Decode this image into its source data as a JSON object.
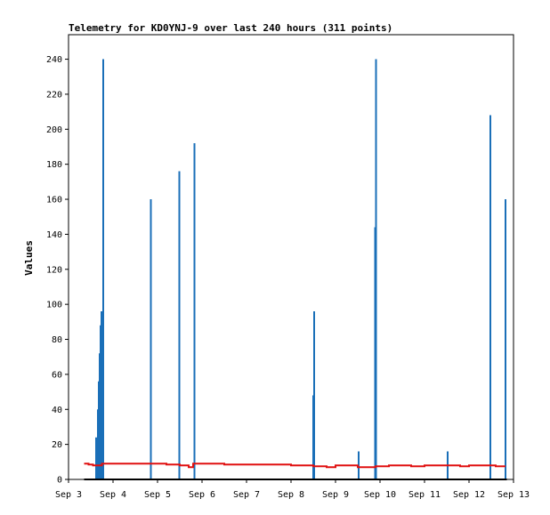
{
  "chart_data": {
    "type": "line",
    "title": "Telemetry for KD0YNJ-9 over last 240 hours (311 points)",
    "ylabel": "Values",
    "xlabel": "",
    "ylim": [
      0,
      254
    ],
    "y_ticks": [
      0,
      20,
      40,
      60,
      80,
      100,
      120,
      140,
      160,
      180,
      200,
      220,
      240
    ],
    "x_ticks": [
      "Sep 3",
      "Sep 4",
      "Sep 5",
      "Sep 6",
      "Sep 7",
      "Sep 8",
      "Sep 9",
      "Sep 10",
      "Sep 11",
      "Sep 12",
      "Sep 13"
    ],
    "xlim_days": [
      3,
      13
    ],
    "grid": false,
    "legend": "none",
    "colors": {
      "spikes": "#1a6fb8",
      "baseline": "#e01010",
      "zero": "#000000"
    },
    "series": [
      {
        "style": "spikes",
        "x_days": [
          3.62,
          3.66,
          3.68,
          3.7,
          3.72,
          3.74,
          3.76,
          3.78,
          4.85,
          5.49,
          5.83,
          8.5,
          8.52,
          9.52,
          9.89,
          9.91,
          11.52,
          12.48,
          12.82
        ],
        "values": [
          24,
          40,
          56,
          72,
          88,
          96,
          96,
          240,
          160,
          176,
          192,
          48,
          96,
          16,
          144,
          240,
          16,
          208,
          160
        ]
      },
      {
        "style": "line",
        "x_days": [
          3.35,
          3.45,
          3.55,
          3.65,
          3.75,
          4.0,
          4.5,
          4.9,
          5.2,
          5.5,
          5.7,
          5.8,
          6.2,
          6.5,
          7.0,
          7.8,
          8.0,
          8.5,
          8.8,
          9.0,
          9.5,
          9.9,
          10.2,
          10.5,
          10.7,
          11.0,
          11.5,
          11.8,
          12.0,
          12.4,
          12.6,
          12.8
        ],
        "values": [
          9,
          8.5,
          8,
          8,
          9,
          9,
          9,
          9,
          8.5,
          8,
          7,
          9,
          9,
          8.5,
          8.5,
          8.5,
          8,
          7.5,
          7,
          8,
          7,
          7.5,
          8,
          8,
          7.5,
          8,
          8,
          7.5,
          8,
          8,
          7.5,
          7
        ]
      },
      {
        "style": "line",
        "x_days": [
          3.35,
          12.85
        ],
        "values": [
          0,
          0
        ]
      }
    ]
  }
}
